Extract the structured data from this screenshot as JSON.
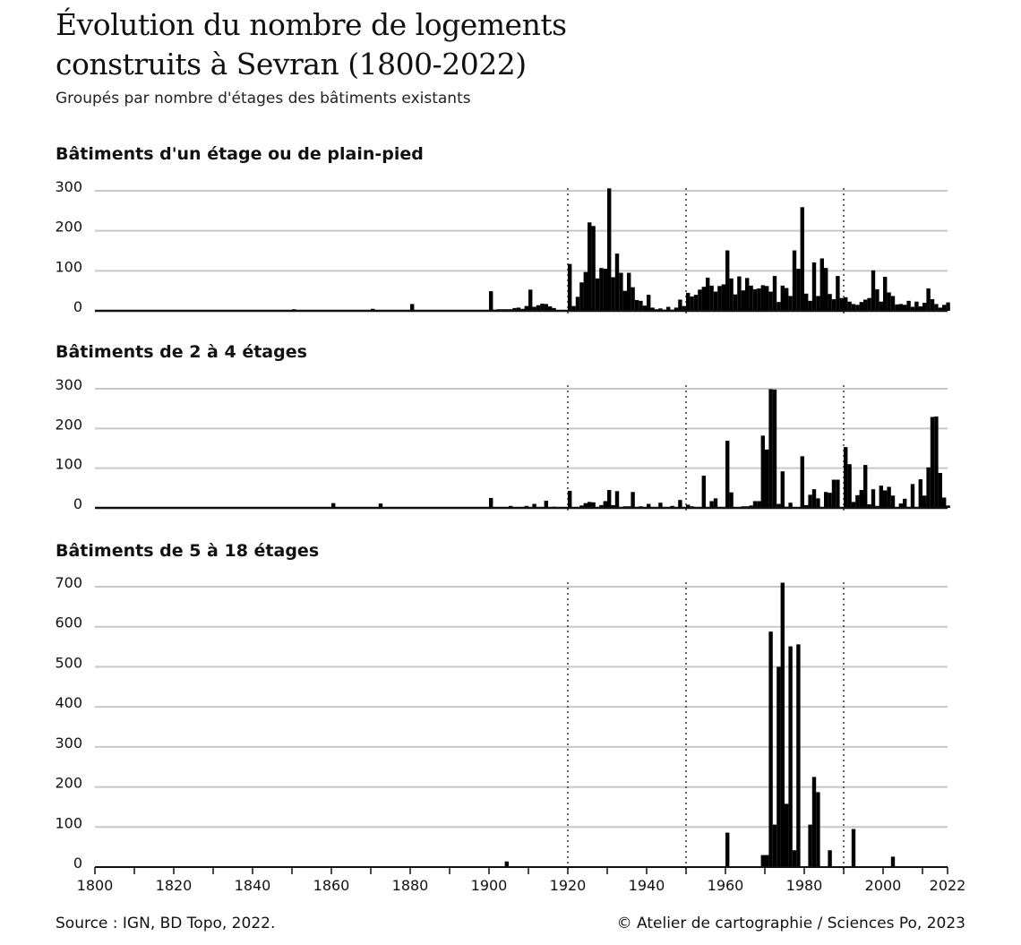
{
  "title_line1": "Évolution du nombre de logements",
  "title_line2": "construits à Sevran (1800-2022)",
  "subtitle": "Groupés par nombre d'étages des bâtiments existants",
  "footer": {
    "source": "Source : IGN, BD Topo, 2022.",
    "credit": "© Atelier de cartographie / Sciences Po, 2023"
  },
  "colors": {
    "bars": "#000000",
    "grid": "#c8c8c8",
    "reference_lines": "#333333"
  },
  "chart_data": [
    {
      "type": "bar",
      "title": "Bâtiments d'un étage ou de plain-pied",
      "xlim": [
        1800,
        2022
      ],
      "ylim": [
        0,
        300
      ],
      "yticks": [
        0,
        100,
        200,
        300
      ],
      "grid": true,
      "reference_years": [
        1920,
        1950,
        1990
      ],
      "values": {
        "1850": 4,
        "1870": 5,
        "1880": 17,
        "1900": 49,
        "1901": 3,
        "1902": 4,
        "1903": 4,
        "1904": 4,
        "1905": 4,
        "1906": 7,
        "1907": 8,
        "1908": 5,
        "1909": 12,
        "1910": 53,
        "1911": 10,
        "1912": 14,
        "1913": 18,
        "1914": 17,
        "1915": 11,
        "1916": 7,
        "1917": 2,
        "1918": 2,
        "1919": 2,
        "1920": 117,
        "1921": 12,
        "1922": 35,
        "1923": 71,
        "1924": 97,
        "1925": 221,
        "1926": 212,
        "1927": 81,
        "1928": 107,
        "1929": 105,
        "1930": 306,
        "1931": 84,
        "1932": 143,
        "1933": 95,
        "1934": 50,
        "1935": 95,
        "1936": 59,
        "1937": 27,
        "1938": 25,
        "1939": 13,
        "1940": 40,
        "1941": 8,
        "1942": 4,
        "1943": 6,
        "1944": 3,
        "1945": 10,
        "1946": 3,
        "1947": 8,
        "1948": 28,
        "1949": 12,
        "1950": 45,
        "1951": 36,
        "1952": 40,
        "1953": 53,
        "1954": 60,
        "1955": 83,
        "1956": 63,
        "1957": 48,
        "1958": 62,
        "1959": 66,
        "1960": 151,
        "1961": 81,
        "1962": 41,
        "1963": 86,
        "1964": 51,
        "1965": 82,
        "1966": 63,
        "1967": 54,
        "1968": 56,
        "1969": 64,
        "1970": 62,
        "1971": 48,
        "1972": 87,
        "1973": 22,
        "1974": 63,
        "1975": 57,
        "1976": 37,
        "1977": 151,
        "1978": 105,
        "1979": 259,
        "1980": 43,
        "1981": 25,
        "1982": 121,
        "1983": 37,
        "1984": 131,
        "1985": 107,
        "1986": 42,
        "1987": 29,
        "1988": 87,
        "1989": 32,
        "1990": 34,
        "1991": 23,
        "1992": 17,
        "1993": 15,
        "1994": 22,
        "1995": 28,
        "1996": 32,
        "1997": 101,
        "1998": 54,
        "1999": 23,
        "2000": 85,
        "2001": 46,
        "2002": 37,
        "2003": 16,
        "2004": 17,
        "2005": 15,
        "2006": 25,
        "2007": 10,
        "2008": 23,
        "2009": 11,
        "2010": 20,
        "2011": 56,
        "2012": 29,
        "2013": 17,
        "2014": 8,
        "2015": 15,
        "2016": 21
      }
    },
    {
      "type": "bar",
      "title": "Bâtiments de 2 à 4 étages",
      "xlim": [
        1800,
        2022
      ],
      "ylim": [
        0,
        300
      ],
      "yticks": [
        0,
        100,
        200,
        300
      ],
      "grid": true,
      "reference_years": [
        1920,
        1950,
        1990
      ],
      "values": {
        "1860": 12,
        "1872": 11,
        "1900": 25,
        "1905": 5,
        "1909": 5,
        "1911": 10,
        "1914": 18,
        "1916": 3,
        "1920": 43,
        "1923": 6,
        "1924": 12,
        "1925": 15,
        "1926": 14,
        "1928": 7,
        "1929": 17,
        "1930": 45,
        "1931": 7,
        "1932": 42,
        "1934": 4,
        "1935": 4,
        "1936": 40,
        "1938": 4,
        "1940": 10,
        "1943": 13,
        "1946": 5,
        "1948": 20,
        "1950": 8,
        "1951": 4,
        "1952": 2,
        "1954": 81,
        "1956": 17,
        "1957": 24,
        "1959": 2,
        "1960": 169,
        "1961": 39,
        "1964": 4,
        "1965": 4,
        "1966": 6,
        "1967": 17,
        "1968": 17,
        "1969": 182,
        "1970": 147,
        "1971": 299,
        "1972": 298,
        "1973": 10,
        "1974": 92,
        "1975": 3,
        "1976": 13,
        "1979": 130,
        "1980": 7,
        "1981": 33,
        "1982": 47,
        "1983": 24,
        "1985": 40,
        "1986": 38,
        "1987": 71,
        "1988": 71,
        "1989": 2,
        "1990": 153,
        "1991": 110,
        "1992": 15,
        "1993": 32,
        "1994": 45,
        "1995": 108,
        "1996": 9,
        "1997": 47,
        "1998": 5,
        "1999": 56,
        "2000": 44,
        "2001": 53,
        "2002": 31,
        "2003": 2,
        "2004": 11,
        "2005": 23,
        "2007": 60,
        "2009": 72,
        "2010": 31,
        "2011": 102,
        "2012": 229,
        "2013": 230,
        "2014": 88,
        "2015": 26,
        "2016": 6
      }
    },
    {
      "type": "bar",
      "title": "Bâtiments de 5 à 18 étages",
      "xlim": [
        1800,
        2022
      ],
      "ylim": [
        0,
        700
      ],
      "yticks": [
        0,
        100,
        200,
        300,
        400,
        500,
        600,
        700
      ],
      "grid": true,
      "reference_years": [
        1920,
        1950,
        1990
      ],
      "xtick_labels": [
        "1800",
        "1820",
        "1840",
        "1860",
        "1880",
        "1900",
        "1920",
        "1940",
        "1960",
        "1980",
        "2000",
        "2022"
      ],
      "values": {
        "1904": 14,
        "1960": 86,
        "1969": 30,
        "1970": 30,
        "1971": 588,
        "1972": 106,
        "1973": 500,
        "1974": 710,
        "1975": 158,
        "1976": 551,
        "1977": 42,
        "1978": 556,
        "1981": 106,
        "1982": 225,
        "1983": 187,
        "1986": 42,
        "1992": 95,
        "2002": 26
      }
    }
  ]
}
